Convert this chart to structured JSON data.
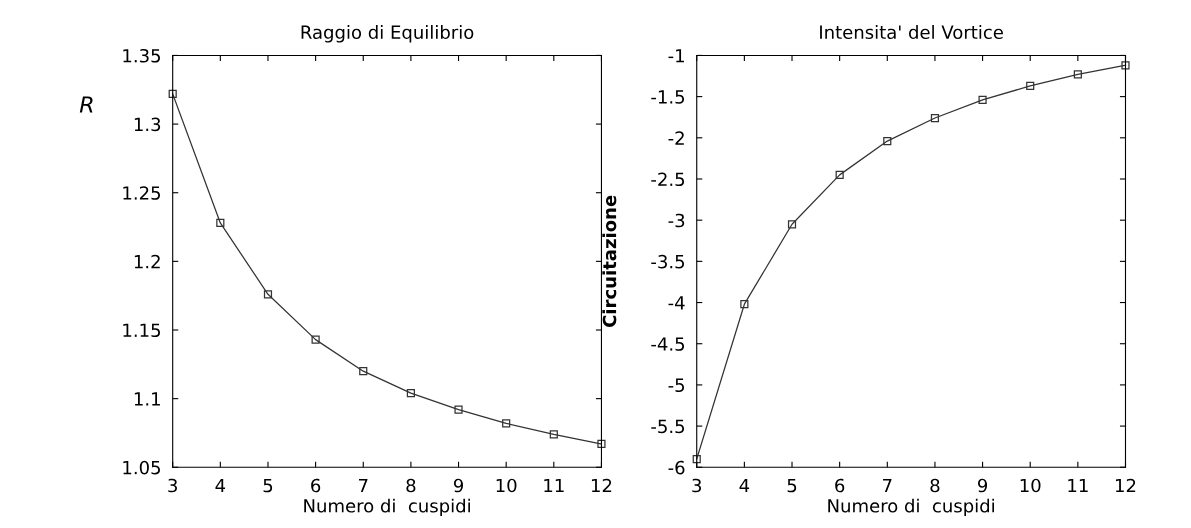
{
  "chart_data": [
    {
      "type": "line",
      "title": "Raggio di Equilibrio",
      "xlabel": "Numero di  cuspidi",
      "ylabel": "R",
      "x": [
        3,
        4,
        5,
        6,
        7,
        8,
        9,
        10,
        11,
        12
      ],
      "series": [
        {
          "color": "#333333",
          "values": [
            1.322,
            1.228,
            1.176,
            1.143,
            1.12,
            1.104,
            1.092,
            1.082,
            1.074,
            1.067
          ]
        }
      ],
      "xlim": [
        3,
        12
      ],
      "xticks": [
        3,
        4,
        5,
        6,
        7,
        8,
        9,
        10,
        11,
        12
      ],
      "ylim": [
        1.05,
        1.35
      ],
      "yticks": [
        1.05,
        1.1,
        1.15,
        1.2,
        1.25,
        1.3,
        1.35
      ],
      "marker": "square",
      "grid": false
    },
    {
      "type": "line",
      "title": "Intensita' del Vortice",
      "xlabel": "Numero di  cuspidi",
      "ylabel": "Circuitazione",
      "x": [
        3,
        4,
        5,
        6,
        7,
        8,
        9,
        10,
        11,
        12
      ],
      "series": [
        {
          "color": "#333333",
          "values": [
            -5.9,
            -4.02,
            -3.05,
            -2.45,
            -2.04,
            -1.76,
            -1.54,
            -1.37,
            -1.23,
            -1.12
          ]
        }
      ],
      "xlim": [
        3,
        12
      ],
      "xticks": [
        3,
        4,
        5,
        6,
        7,
        8,
        9,
        10,
        11,
        12
      ],
      "ylim": [
        -6,
        -1
      ],
      "yticks": [
        -6,
        -5.5,
        -5,
        -4.5,
        -4,
        -3.5,
        -3,
        -2.5,
        -2,
        -1.5,
        -1
      ],
      "marker": "square",
      "grid": false
    }
  ]
}
